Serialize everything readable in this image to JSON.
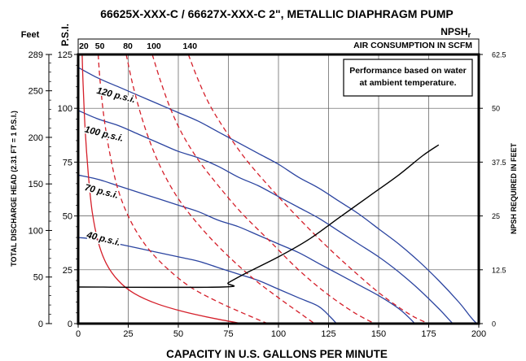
{
  "chart_data": {
    "type": "line",
    "title": "66625X-XXX-C / 66627X-XXX-C 2\", METALLIC DIAPHRAGM PUMP",
    "xlabel": "CAPACITY IN U.S. GALLONS PER MINUTE",
    "ylabel_left": "TOTAL DISCHARGE HEAD (2.31 FT = 1 P.S.I.)",
    "ylabel_right": "NPSH REQUIRED IN FEET",
    "feet_unit": "Feet",
    "psi_unit": "P.S.I.",
    "air_label": "AIR CONSUMPTION IN SCFM",
    "note_line1": "Performance based on water",
    "note_line2": "at ambient temperature.",
    "xlim": [
      0,
      200
    ],
    "ylim_psi": [
      0,
      125
    ],
    "ylim_npsh_ft": [
      0,
      62.5
    ],
    "x_ticks": [
      0,
      25,
      50,
      75,
      100,
      125,
      150,
      175,
      200
    ],
    "x_tick_labels": [
      "0",
      "25",
      "50",
      "75",
      "100",
      "125",
      "150",
      "175",
      "200"
    ],
    "psi_ticks": [
      0,
      25,
      50,
      75,
      100,
      125
    ],
    "psi_tick_labels": [
      "0",
      "25",
      "50",
      "75",
      "100",
      "125"
    ],
    "feet_ticks": [
      0,
      50,
      100,
      150,
      200,
      250,
      289
    ],
    "feet_tick_labels": [
      "0",
      "50",
      "100",
      "150",
      "200",
      "250",
      "289"
    ],
    "npsh_ticks": [
      0,
      12.5,
      25,
      37.5,
      50,
      62.5
    ],
    "npsh_tick_labels": [
      "0",
      "12.5",
      "25",
      "37.5",
      "50",
      "62.5"
    ],
    "grid": true,
    "air_labels": [
      {
        "scfm": "20",
        "gpm": 2
      },
      {
        "scfm": "50",
        "gpm": 10
      },
      {
        "scfm": "80",
        "gpm": 24
      },
      {
        "scfm": "100",
        "gpm": 37
      },
      {
        "scfm": "140",
        "gpm": 55
      }
    ],
    "series": [
      {
        "name": "120 p.s.i.",
        "color": "#2b44a0",
        "label_at": [
          9,
          107
        ],
        "points": [
          [
            0,
            119
          ],
          [
            10,
            114
          ],
          [
            20,
            110
          ],
          [
            30,
            106
          ],
          [
            40,
            102
          ],
          [
            50,
            98
          ],
          [
            60,
            94
          ],
          [
            70,
            89
          ],
          [
            80,
            84
          ],
          [
            90,
            79
          ],
          [
            100,
            74
          ],
          [
            110,
            68
          ],
          [
            120,
            63
          ],
          [
            130,
            57
          ],
          [
            140,
            51
          ],
          [
            150,
            44
          ],
          [
            160,
            37
          ],
          [
            170,
            29
          ],
          [
            180,
            20
          ],
          [
            190,
            10
          ],
          [
            196,
            3
          ],
          [
            199,
            0
          ]
        ]
      },
      {
        "name": "100 p.s.i.",
        "color": "#2b44a0",
        "label_at": [
          3,
          89
        ],
        "points": [
          [
            0,
            99
          ],
          [
            10,
            95
          ],
          [
            20,
            92
          ],
          [
            30,
            88
          ],
          [
            40,
            84
          ],
          [
            50,
            80
          ],
          [
            60,
            77
          ],
          [
            70,
            73
          ],
          [
            80,
            68
          ],
          [
            90,
            64
          ],
          [
            100,
            59
          ],
          [
            110,
            54
          ],
          [
            120,
            49
          ],
          [
            130,
            43
          ],
          [
            140,
            37
          ],
          [
            150,
            31
          ],
          [
            160,
            24
          ],
          [
            170,
            16
          ],
          [
            180,
            7
          ],
          [
            185,
            2
          ],
          [
            187,
            0
          ]
        ]
      },
      {
        "name": "70 p.s.i.",
        "color": "#2b44a0",
        "label_at": [
          3,
          62
        ],
        "points": [
          [
            0,
            69
          ],
          [
            10,
            67
          ],
          [
            20,
            64
          ],
          [
            30,
            61
          ],
          [
            40,
            58
          ],
          [
            50,
            55
          ],
          [
            60,
            52
          ],
          [
            70,
            48
          ],
          [
            80,
            45
          ],
          [
            90,
            41
          ],
          [
            100,
            37
          ],
          [
            110,
            33
          ],
          [
            120,
            28
          ],
          [
            130,
            23
          ],
          [
            140,
            18
          ],
          [
            150,
            13
          ],
          [
            160,
            7
          ],
          [
            166,
            2
          ],
          [
            168,
            0
          ]
        ]
      },
      {
        "name": "40 p.s.i.",
        "color": "#2b44a0",
        "label_at": [
          4,
          40
        ],
        "points": [
          [
            0,
            40
          ],
          [
            10,
            39
          ],
          [
            20,
            37
          ],
          [
            30,
            35
          ],
          [
            40,
            33
          ],
          [
            50,
            31
          ],
          [
            60,
            29
          ],
          [
            70,
            26
          ],
          [
            80,
            23
          ],
          [
            90,
            20
          ],
          [
            100,
            16
          ],
          [
            110,
            12
          ],
          [
            120,
            8
          ],
          [
            126,
            3
          ],
          [
            129,
            0
          ]
        ]
      },
      {
        "name": "20 SCFM",
        "color": "#d51f2a",
        "dashed": false,
        "points": [
          [
            2,
            125
          ],
          [
            2.5,
            110
          ],
          [
            3.5,
            90
          ],
          [
            5,
            70
          ],
          [
            7,
            52
          ],
          [
            10,
            38
          ],
          [
            14,
            28
          ],
          [
            20,
            20
          ],
          [
            28,
            14
          ],
          [
            40,
            9
          ],
          [
            55,
            5
          ],
          [
            70,
            2
          ],
          [
            82,
            0
          ]
        ]
      },
      {
        "name": "50 SCFM",
        "color": "#d51f2a",
        "dashed": true,
        "points": [
          [
            10,
            125
          ],
          [
            11,
            112
          ],
          [
            13,
            95
          ],
          [
            16,
            78
          ],
          [
            20,
            62
          ],
          [
            26,
            48
          ],
          [
            34,
            36
          ],
          [
            44,
            26
          ],
          [
            56,
            17
          ],
          [
            70,
            10
          ],
          [
            82,
            5
          ],
          [
            92,
            1
          ],
          [
            95,
            0
          ]
        ]
      },
      {
        "name": "80 SCFM",
        "color": "#d51f2a",
        "dashed": true,
        "points": [
          [
            24,
            125
          ],
          [
            27,
            112
          ],
          [
            31,
            98
          ],
          [
            36,
            84
          ],
          [
            42,
            71
          ],
          [
            50,
            58
          ],
          [
            60,
            46
          ],
          [
            72,
            34
          ],
          [
            86,
            22
          ],
          [
            100,
            12
          ],
          [
            112,
            4
          ],
          [
            118,
            0
          ]
        ]
      },
      {
        "name": "100 SCFM",
        "color": "#d51f2a",
        "dashed": true,
        "points": [
          [
            37,
            125
          ],
          [
            41,
            113
          ],
          [
            46,
            100
          ],
          [
            52,
            88
          ],
          [
            60,
            76
          ],
          [
            70,
            64
          ],
          [
            82,
            51
          ],
          [
            96,
            38
          ],
          [
            110,
            25
          ],
          [
            124,
            14
          ],
          [
            138,
            5
          ],
          [
            148,
            0
          ]
        ]
      },
      {
        "name": "140 SCFM",
        "color": "#d51f2a",
        "dashed": true,
        "points": [
          [
            55,
            125
          ],
          [
            60,
            113
          ],
          [
            66,
            101
          ],
          [
            74,
            89
          ],
          [
            84,
            76
          ],
          [
            96,
            63
          ],
          [
            110,
            49
          ],
          [
            124,
            36
          ],
          [
            138,
            24
          ],
          [
            152,
            13
          ],
          [
            166,
            4
          ],
          [
            175,
            0
          ]
        ]
      },
      {
        "name": "NPSHr",
        "color": "#000000",
        "label_base": "NPSH",
        "label_sub": "r",
        "label_at": [
          181,
          67
        ],
        "axis": "npsh",
        "points": [
          [
            0,
            8.5
          ],
          [
            72,
            8.5
          ],
          [
            75,
            9.5
          ],
          [
            85,
            12
          ],
          [
            100,
            15.5
          ],
          [
            115,
            19.5
          ],
          [
            130,
            24.5
          ],
          [
            145,
            29.5
          ],
          [
            160,
            34.5
          ],
          [
            172,
            39
          ],
          [
            180,
            41.5
          ]
        ]
      }
    ]
  }
}
